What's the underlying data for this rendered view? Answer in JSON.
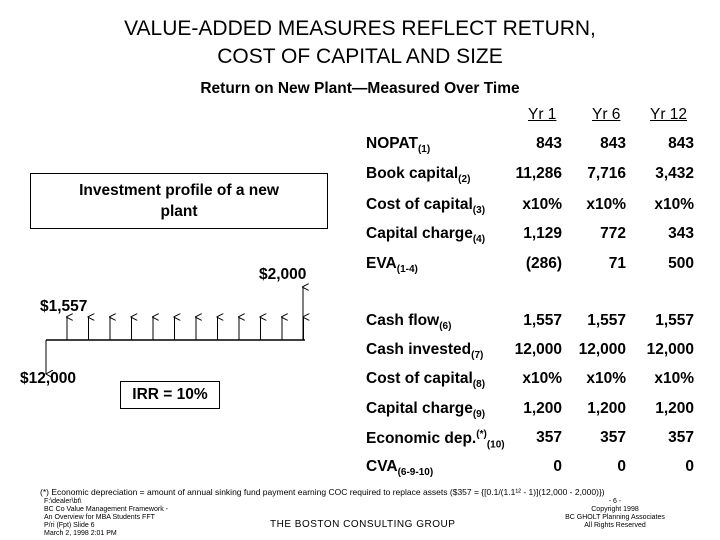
{
  "title": {
    "line1": "VALUE-ADDED MEASURES REFLECT RETURN,",
    "line2": "COST OF CAPITAL AND SIZE"
  },
  "subtitle": "Return on New Plant—Measured Over Time",
  "columns": [
    "Yr 1",
    "Yr 6",
    "Yr 12"
  ],
  "rows": [
    {
      "label": "NOPAT",
      "sub": "(1)",
      "sup": "",
      "values": [
        "843",
        "843",
        "843"
      ]
    },
    {
      "label": "Book capital",
      "sub": "(2)",
      "sup": "",
      "values": [
        "11,286",
        "7,716",
        "3,432"
      ]
    },
    {
      "label": "Cost of capital",
      "sub": "(3)",
      "sup": "",
      "values": [
        "x10%",
        "x10%",
        "x10%"
      ]
    },
    {
      "label": "Capital charge",
      "sub": "(4)",
      "sup": "",
      "values": [
        "1,129",
        "772",
        "343"
      ]
    },
    {
      "label": "EVA",
      "sub": "(1-4)",
      "sup": "",
      "values": [
        "(286)",
        "71",
        "500"
      ]
    },
    {
      "label": "Cash flow",
      "sub": "(6)",
      "sup": "",
      "values": [
        "1,557",
        "1,557",
        "1,557"
      ]
    },
    {
      "label": "Cash invested",
      "sub": "(7)",
      "sup": "",
      "values": [
        "12,000",
        "12,000",
        "12,000"
      ]
    },
    {
      "label": "Cost of capital",
      "sub": "(8)",
      "sup": "",
      "values": [
        "x10%",
        "x10%",
        "x10%"
      ]
    },
    {
      "label": "Capital charge",
      "sub": "(9)",
      "sup": "",
      "values": [
        "1,200",
        "1,200",
        "1,200"
      ]
    },
    {
      "label": "Economic dep.",
      "sub": "(10)",
      "sup": "(*)",
      "values": [
        "357",
        "357",
        "357"
      ]
    },
    {
      "label": "CVA",
      "sub": "(6-9-10)",
      "sup": "",
      "values": [
        "0",
        "0",
        "0"
      ]
    }
  ],
  "investment_profile": {
    "box_text_line1": "Investment profile of a new",
    "box_text_line2": "plant",
    "label_2000": "$2,000",
    "label_1557": "$1,557",
    "label_12000": "$12,000",
    "irr_label": "IRR = 10%"
  },
  "footnote": "(*) Economic depreciation = amount of annual sinking fund payment earning COC required to replace assets ($357 = {[0.1/(1.1¹² - 1)](12,000 - 2,000)})",
  "footer": {
    "left_lines": [
      "F:\\dealer\\bt\\",
      "BC Co Value Management Framework -",
      "An Overview for MBA Students FFT",
      "P/ri (Fpt) Slide 6",
      "March 2, 1998 2:01 PM"
    ],
    "center": "THE BOSTON CONSULTING GROUP",
    "right_lines": [
      "- 6 -",
      "Copyright 1998",
      "BC GHOLT Planning Associates",
      "All Rights Reserved"
    ]
  }
}
